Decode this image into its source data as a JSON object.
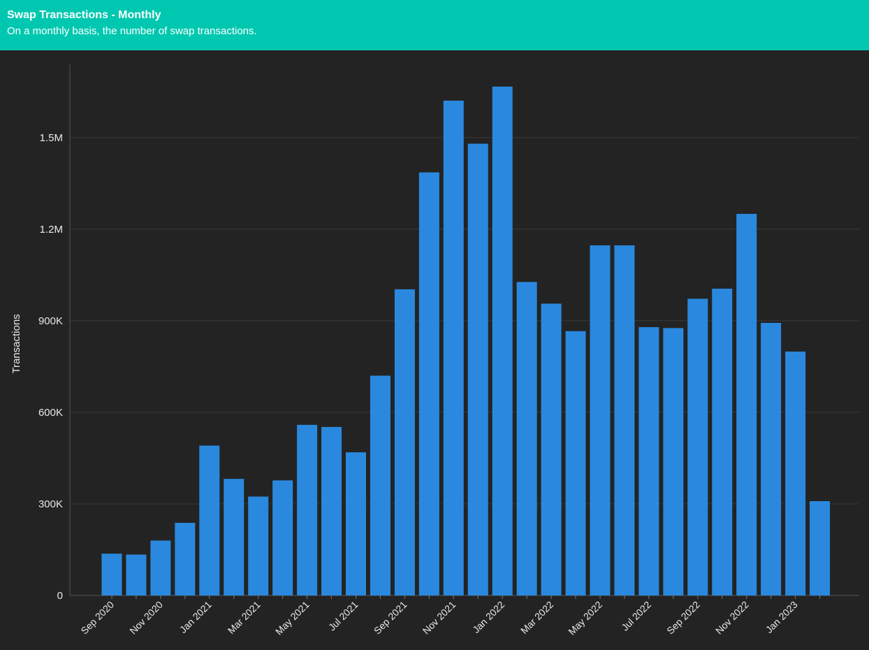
{
  "header": {
    "title": "Swap Transactions - Monthly",
    "subtitle": "On a monthly basis, the number of swap transactions."
  },
  "colors": {
    "header_bg": "#00c8b0",
    "background": "#232323",
    "bar": "#2a89de",
    "grid": "#3a3a3a",
    "text": "#e8e8e8"
  },
  "chart_data": {
    "type": "bar",
    "title": "Swap Transactions - Monthly",
    "subtitle": "On a monthly basis, the number of swap transactions.",
    "xlabel": "",
    "ylabel": "Transactions",
    "ylim": [
      0,
      1740000
    ],
    "yticks": [
      0,
      300000,
      600000,
      900000,
      1200000,
      1500000
    ],
    "ytick_labels": [
      "0",
      "300K",
      "600K",
      "900K",
      "1.2M",
      "1.5M"
    ],
    "grid": true,
    "legend": "none",
    "categories": [
      "Sep 2020",
      "Oct 2020",
      "Nov 2020",
      "Dec 2020",
      "Jan 2021",
      "Feb 2021",
      "Mar 2021",
      "Apr 2021",
      "May 2021",
      "Jun 2021",
      "Jul 2021",
      "Aug 2021",
      "Sep 2021",
      "Oct 2021",
      "Nov 2021",
      "Dec 2021",
      "Jan 2022",
      "Feb 2022",
      "Mar 2022",
      "Apr 2022",
      "May 2022",
      "Jun 2022",
      "Jul 2022",
      "Aug 2022",
      "Sep 2022",
      "Oct 2022",
      "Nov 2022",
      "Dec 2022",
      "Jan 2023",
      "Feb 2023"
    ],
    "xtick_labels": [
      "Sep 2020",
      "",
      "Nov 2020",
      "",
      "Jan 2021",
      "",
      "Mar 2021",
      "",
      "May 2021",
      "",
      "Jul 2021",
      "",
      "Sep 2021",
      "",
      "Nov 2021",
      "",
      "Jan 2022",
      "",
      "Mar 2022",
      "",
      "May 2022",
      "",
      "Jul 2022",
      "",
      "Sep 2022",
      "",
      "Nov 2022",
      "",
      "Jan 2023",
      ""
    ],
    "values": [
      137000,
      134000,
      180000,
      238000,
      491000,
      382000,
      324000,
      377000,
      559000,
      552000,
      469000,
      720000,
      1003000,
      1386000,
      1621000,
      1480000,
      1667000,
      1027000,
      956000,
      866000,
      1147000,
      1147000,
      879000,
      876000,
      972000,
      1005000,
      1250000,
      893000,
      799000,
      309000
    ]
  }
}
